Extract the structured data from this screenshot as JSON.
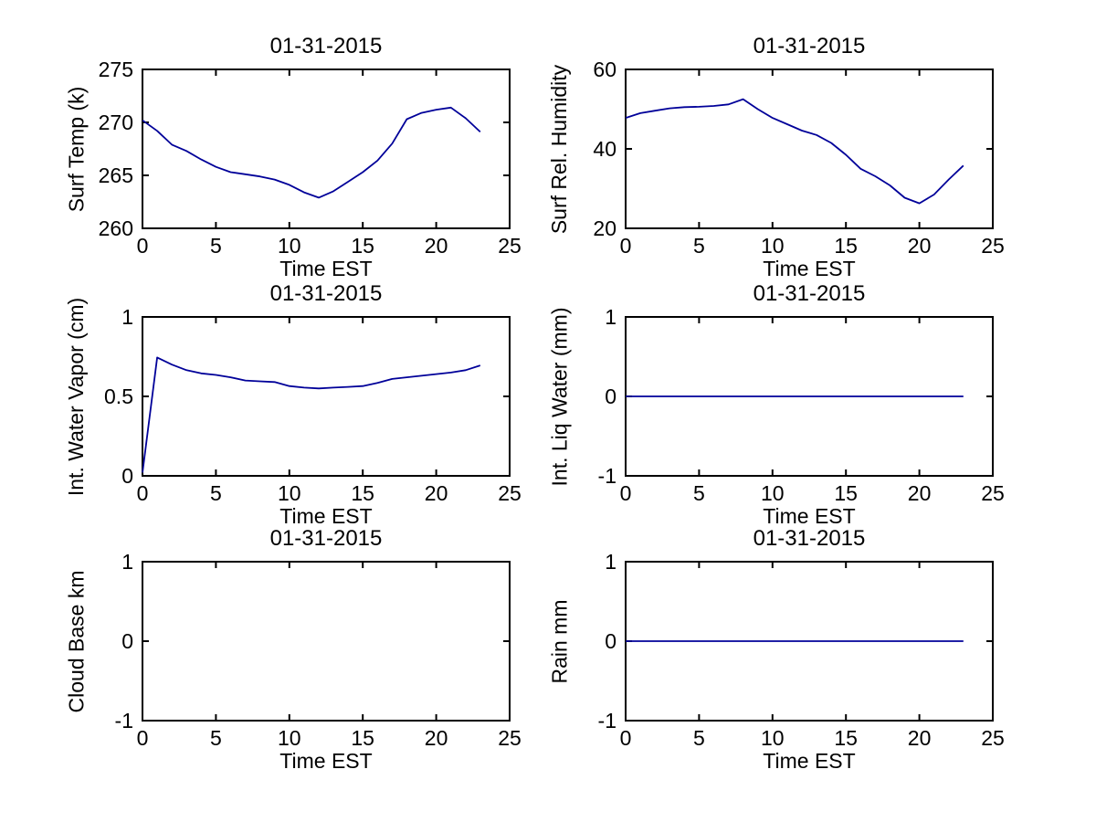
{
  "figure": {
    "background": "#ffffff",
    "line_color": "#000099",
    "axis_color": "#000000",
    "text_color": "#000000"
  },
  "chart_data": [
    {
      "type": "line",
      "title": "01-31-2015",
      "xlabel": "Time EST",
      "ylabel": "Surf Temp (k)",
      "xlim": [
        0,
        25
      ],
      "ylim": [
        260,
        275
      ],
      "xticks": [
        0,
        5,
        10,
        15,
        20,
        25
      ],
      "xtick_labels": [
        "0",
        "5",
        "10",
        "15",
        "20",
        "25"
      ],
      "yticks": [
        260,
        265,
        270,
        275
      ],
      "ytick_labels": [
        "260",
        "265",
        "270",
        "275"
      ],
      "grid": false,
      "legend": null,
      "x": [
        0,
        1,
        2,
        3,
        4,
        5,
        6,
        7,
        8,
        9,
        10,
        11,
        12,
        13,
        14,
        15,
        16,
        17,
        18,
        19,
        20,
        21,
        22,
        23
      ],
      "y": [
        270.2,
        269.2,
        267.9,
        267.3,
        266.5,
        265.8,
        265.3,
        265.1,
        264.9,
        264.6,
        264.1,
        263.4,
        262.9,
        263.5,
        264.4,
        265.3,
        266.4,
        268.0,
        270.3,
        270.9,
        271.2,
        271.4,
        270.4,
        269.1
      ]
    },
    {
      "type": "line",
      "title": "01-31-2015",
      "xlabel": "Time EST",
      "ylabel": "Surf Rel. Humidity",
      "xlim": [
        0,
        25
      ],
      "ylim": [
        20,
        60
      ],
      "xticks": [
        0,
        5,
        10,
        15,
        20,
        25
      ],
      "xtick_labels": [
        "0",
        "5",
        "10",
        "15",
        "20",
        "25"
      ],
      "yticks": [
        20,
        40,
        60
      ],
      "ytick_labels": [
        "20",
        "40",
        "60"
      ],
      "grid": false,
      "legend": null,
      "x": [
        0,
        1,
        2,
        3,
        4,
        5,
        6,
        7,
        8,
        9,
        10,
        11,
        12,
        13,
        14,
        15,
        16,
        17,
        18,
        19,
        20,
        21,
        22,
        23
      ],
      "y": [
        47.8,
        49.0,
        49.6,
        50.2,
        50.5,
        50.6,
        50.8,
        51.2,
        52.5,
        50.0,
        47.8,
        46.2,
        44.6,
        43.5,
        41.5,
        38.5,
        35.0,
        33.1,
        30.8,
        27.7,
        26.3,
        28.5,
        32.3,
        35.8
      ]
    },
    {
      "type": "line",
      "title": "01-31-2015",
      "xlabel": "Time EST",
      "ylabel": "Int. Water Vapor (cm)",
      "xlim": [
        0,
        25
      ],
      "ylim": [
        0,
        1
      ],
      "xticks": [
        0,
        5,
        10,
        15,
        20,
        25
      ],
      "xtick_labels": [
        "0",
        "5",
        "10",
        "15",
        "20",
        "25"
      ],
      "yticks": [
        0,
        0.5,
        1
      ],
      "ytick_labels": [
        "0",
        "0.5",
        "1"
      ],
      "grid": false,
      "legend": null,
      "x": [
        0,
        1,
        2,
        3,
        4,
        5,
        6,
        7,
        8,
        9,
        10,
        11,
        12,
        13,
        14,
        15,
        16,
        17,
        18,
        19,
        20,
        21,
        22,
        23
      ],
      "y": [
        0.02,
        0.745,
        0.7,
        0.665,
        0.645,
        0.635,
        0.62,
        0.6,
        0.595,
        0.59,
        0.565,
        0.555,
        0.55,
        0.555,
        0.56,
        0.565,
        0.585,
        0.61,
        0.62,
        0.63,
        0.64,
        0.65,
        0.665,
        0.695
      ]
    },
    {
      "type": "line",
      "title": "01-31-2015",
      "xlabel": "Time EST",
      "ylabel": "Int. Liq Water (mm)",
      "xlim": [
        0,
        25
      ],
      "ylim": [
        -1,
        1
      ],
      "xticks": [
        0,
        5,
        10,
        15,
        20,
        25
      ],
      "xtick_labels": [
        "0",
        "5",
        "10",
        "15",
        "20",
        "25"
      ],
      "yticks": [
        -1,
        0,
        1
      ],
      "ytick_labels": [
        "-1",
        "0",
        "1"
      ],
      "grid": false,
      "legend": null,
      "x": [
        0,
        1,
        2,
        3,
        4,
        5,
        6,
        7,
        8,
        9,
        10,
        11,
        12,
        13,
        14,
        15,
        16,
        17,
        18,
        19,
        20,
        21,
        22,
        23
      ],
      "y": [
        0,
        0,
        0,
        0,
        0,
        0,
        0,
        0,
        0,
        0,
        0,
        0,
        0,
        0,
        0,
        0,
        0,
        0,
        0,
        0,
        0,
        0,
        0,
        0
      ]
    },
    {
      "type": "line",
      "title": "01-31-2015",
      "xlabel": "Time EST",
      "ylabel": "Cloud Base km",
      "xlim": [
        0,
        25
      ],
      "ylim": [
        -1,
        1
      ],
      "xticks": [
        0,
        5,
        10,
        15,
        20,
        25
      ],
      "xtick_labels": [
        "0",
        "5",
        "10",
        "15",
        "20",
        "25"
      ],
      "yticks": [
        -1,
        0,
        1
      ],
      "ytick_labels": [
        "-1",
        "0",
        "1"
      ],
      "grid": false,
      "legend": null,
      "x": [],
      "y": []
    },
    {
      "type": "line",
      "title": "01-31-2015",
      "xlabel": "Time EST",
      "ylabel": "Rain mm",
      "xlim": [
        0,
        25
      ],
      "ylim": [
        -1,
        1
      ],
      "xticks": [
        0,
        5,
        10,
        15,
        20,
        25
      ],
      "xtick_labels": [
        "0",
        "5",
        "10",
        "15",
        "20",
        "25"
      ],
      "yticks": [
        -1,
        0,
        1
      ],
      "ytick_labels": [
        "-1",
        "0",
        "1"
      ],
      "grid": false,
      "legend": null,
      "x": [
        0,
        1,
        2,
        3,
        4,
        5,
        6,
        7,
        8,
        9,
        10,
        11,
        12,
        13,
        14,
        15,
        16,
        17,
        18,
        19,
        20,
        21,
        22,
        23
      ],
      "y": [
        0,
        0,
        0,
        0,
        0,
        0,
        0,
        0,
        0,
        0,
        0,
        0,
        0,
        0,
        0,
        0,
        0,
        0,
        0,
        0,
        0,
        0,
        0,
        0
      ]
    }
  ]
}
